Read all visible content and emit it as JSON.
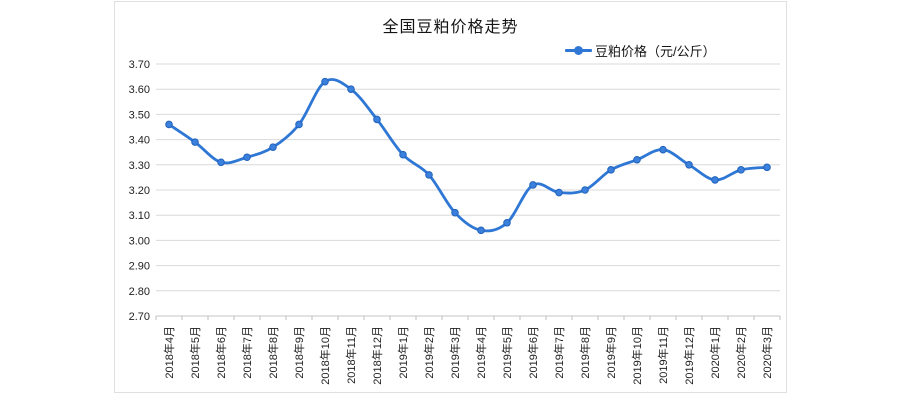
{
  "chart": {
    "title": "全国豆粕价格走势",
    "legend_label": "豆粕价格（元/公斤）"
  },
  "chart_data": {
    "type": "line",
    "title": "全国豆粕价格走势",
    "categories": [
      "2018年4月",
      "2018年5月",
      "2018年6月",
      "2018年7月",
      "2018年8月",
      "2018年9月",
      "2018年10月",
      "2018年11月",
      "2018年12月",
      "2019年1月",
      "2019年2月",
      "2019年3月",
      "2019年4月",
      "2019年5月",
      "2019年6月",
      "2019年7月",
      "2019年8月",
      "2019年9月",
      "2019年10月",
      "2019年11月",
      "2019年12月",
      "2020年1月",
      "2020年2月",
      "2020年3月"
    ],
    "series": [
      {
        "name": "豆粕价格（元/公斤）",
        "values": [
          3.46,
          3.39,
          3.31,
          3.33,
          3.37,
          3.46,
          3.63,
          3.6,
          3.48,
          3.34,
          3.26,
          3.11,
          3.04,
          3.07,
          3.22,
          3.19,
          3.2,
          3.28,
          3.32,
          3.36,
          3.3,
          3.24,
          3.28,
          3.29
        ]
      }
    ],
    "xlabel": "",
    "ylabel": "",
    "ylim": [
      2.7,
      3.7
    ],
    "ytick_step": 0.1,
    "ytick_format_decimals": 2,
    "grid": true,
    "smooth": true,
    "legend_position": "top-right",
    "x_label_rotation": -90,
    "colors": {
      "line": "#2e77d4",
      "marker_fill": "#3a80dc",
      "marker_edge": "#2263bb",
      "grid": "#d9d9d9",
      "axis": "#c4c4c4",
      "tick": "#bfbfbf",
      "text": "#1f1f1f"
    }
  }
}
